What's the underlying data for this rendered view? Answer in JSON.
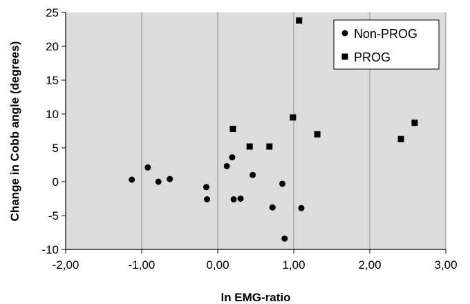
{
  "chart_data": {
    "type": "scatter",
    "xlabel": "ln EMG-ratio",
    "ylabel": "Change in Cobb angle (degrees)",
    "xlim": [
      -2,
      3
    ],
    "ylim": [
      -10,
      25
    ],
    "x_ticks": [
      -2,
      -1,
      0,
      1,
      2,
      3
    ],
    "x_tick_labels": [
      "-2,00",
      "-1,00",
      "0,00",
      "1,00",
      "2,00",
      "3,00"
    ],
    "y_ticks": [
      -10,
      -5,
      0,
      5,
      10,
      15,
      20,
      25
    ],
    "y_tick_labels": [
      "-10",
      "-5",
      "0",
      "5",
      "10",
      "15",
      "20",
      "25"
    ],
    "grid": "vertical",
    "legend_position": "top-right",
    "plot_background": "#dcdcdc",
    "series": [
      {
        "name": "Non-PROG",
        "marker": "circle",
        "color": "#000000",
        "points": [
          {
            "x": -1.13,
            "y": 0.3
          },
          {
            "x": -0.92,
            "y": 2.1
          },
          {
            "x": -0.78,
            "y": 0.0
          },
          {
            "x": -0.63,
            "y": 0.4
          },
          {
            "x": -0.15,
            "y": -0.8
          },
          {
            "x": -0.14,
            "y": -2.6
          },
          {
            "x": 0.12,
            "y": 2.3
          },
          {
            "x": 0.19,
            "y": 3.6
          },
          {
            "x": 0.21,
            "y": -2.6
          },
          {
            "x": 0.3,
            "y": -2.5
          },
          {
            "x": 0.46,
            "y": 1.0
          },
          {
            "x": 0.72,
            "y": -3.8
          },
          {
            "x": 0.85,
            "y": -0.3
          },
          {
            "x": 0.88,
            "y": -8.4
          },
          {
            "x": 1.1,
            "y": -3.9
          }
        ]
      },
      {
        "name": "PROG",
        "marker": "square",
        "color": "#000000",
        "points": [
          {
            "x": 0.2,
            "y": 7.8
          },
          {
            "x": 0.42,
            "y": 5.2
          },
          {
            "x": 0.68,
            "y": 5.2
          },
          {
            "x": 0.99,
            "y": 9.5
          },
          {
            "x": 1.07,
            "y": 23.8
          },
          {
            "x": 1.31,
            "y": 7.0
          },
          {
            "x": 2.41,
            "y": 6.3
          },
          {
            "x": 2.59,
            "y": 8.7
          }
        ]
      }
    ]
  }
}
